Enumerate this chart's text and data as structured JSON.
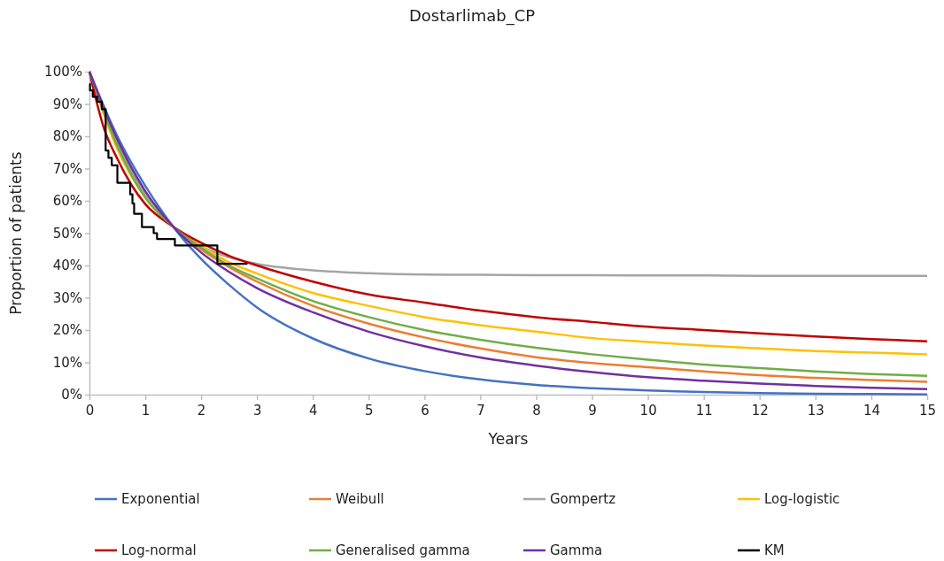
{
  "chart_data": {
    "type": "line",
    "title": "Dostarlimab_CP",
    "xlabel": "Years",
    "ylabel": "Proportion of patients",
    "x": [
      0,
      0.5,
      1,
      1.5,
      2,
      2.5,
      3,
      4,
      5,
      6,
      7,
      8,
      9,
      10,
      11,
      12,
      13,
      14,
      15
    ],
    "xlim": [
      0,
      15
    ],
    "xticks": [
      0,
      1,
      2,
      3,
      4,
      5,
      6,
      7,
      8,
      9,
      10,
      11,
      12,
      13,
      14,
      15
    ],
    "ylim": [
      0,
      100
    ],
    "yticks": [
      {
        "value": 0,
        "label": "0%"
      },
      {
        "value": 10,
        "label": "10%"
      },
      {
        "value": 20,
        "label": "20%"
      },
      {
        "value": 30,
        "label": "30%"
      },
      {
        "value": 40,
        "label": "40%"
      },
      {
        "value": 50,
        "label": "50%"
      },
      {
        "value": 60,
        "label": "60%"
      },
      {
        "value": 70,
        "label": "70%"
      },
      {
        "value": 80,
        "label": "80%"
      },
      {
        "value": 90,
        "label": "90%"
      },
      {
        "value": 100,
        "label": "100%"
      }
    ],
    "legend": "bottom",
    "grid": false,
    "line_style": "solid",
    "series": [
      {
        "name": "Exponential",
        "color": "#4472c4",
        "values": [
          100,
          80,
          64.6,
          52,
          42,
          34,
          27,
          17.4,
          11.2,
          7.3,
          4.7,
          3,
          2,
          1.3,
          0.8,
          0.5,
          0.3,
          0.2,
          0.1
        ]
      },
      {
        "name": "Weibull",
        "color": "#ed7d31",
        "values": [
          100,
          78,
          62,
          52,
          45,
          39.5,
          35,
          27.5,
          22,
          17.7,
          14.3,
          11.6,
          9.8,
          8.5,
          7.2,
          6,
          5.2,
          4.5,
          4
        ]
      },
      {
        "name": "Gompertz",
        "color": "#a5a5a5",
        "values": [
          100,
          78,
          62,
          52,
          46,
          42.5,
          40.5,
          38.5,
          37.6,
          37.2,
          37.1,
          37,
          37,
          36.9,
          36.9,
          36.8,
          36.8,
          36.8,
          36.8
        ]
      },
      {
        "name": "Log-logistic",
        "color": "#ffc000",
        "values": [
          100,
          76,
          61,
          52,
          46,
          41,
          37.5,
          31.5,
          27.5,
          24,
          21.5,
          19.5,
          17.5,
          16.3,
          15.2,
          14.3,
          13.5,
          13,
          12.5
        ]
      },
      {
        "name": "Log-normal",
        "color": "#c00000",
        "x": [
          0,
          0.25,
          0.5,
          0.75,
          1,
          1.5,
          2,
          2.5,
          3,
          4,
          5,
          6,
          7,
          8,
          9,
          10,
          11,
          12,
          13,
          14,
          15
        ],
        "values": [
          100,
          83,
          73,
          65,
          59,
          52,
          47,
          43,
          40,
          35,
          31,
          28.5,
          26,
          24,
          22.5,
          21,
          20,
          19,
          18,
          17.2,
          16.5
        ]
      },
      {
        "name": "Generalised gamma",
        "color": "#70ad47",
        "values": [
          100,
          77,
          61,
          52,
          45.5,
          40,
          36,
          29,
          24,
          20,
          17,
          14.5,
          12.5,
          10.8,
          9.3,
          8.2,
          7.2,
          6.4,
          5.8
        ]
      },
      {
        "name": "Gamma",
        "color": "#7030a0",
        "values": [
          100,
          79,
          63,
          52,
          44,
          38,
          33,
          25.5,
          19.5,
          15,
          11.5,
          9,
          7,
          5.4,
          4.3,
          3.4,
          2.7,
          2.1,
          1.7
        ]
      },
      {
        "name": "KM",
        "type": "step",
        "color": "#000000",
        "x": [
          0,
          0.01,
          0.06,
          0.14,
          0.22,
          0.29,
          0.34,
          0.4,
          0.5,
          0.73,
          0.77,
          0.8,
          0.94,
          1.15,
          1.21,
          1.53,
          2.29,
          2.83
        ],
        "values": [
          96.2,
          94.2,
          92.2,
          90.7,
          88.4,
          75.6,
          73.3,
          71,
          65.6,
          62,
          59.2,
          56,
          51.9,
          50,
          48.2,
          46.2,
          40.5,
          40.5
        ]
      }
    ]
  }
}
